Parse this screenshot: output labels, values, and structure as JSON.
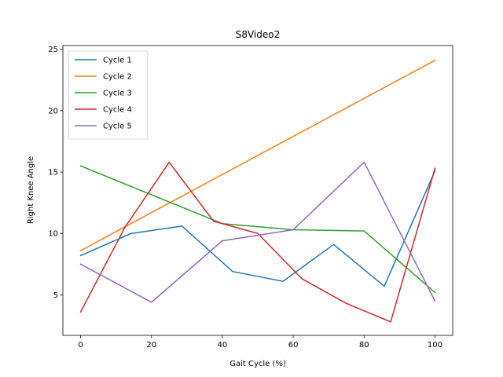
{
  "chart_data": {
    "type": "line",
    "title": "S8Video2",
    "xlabel": "Gait Cycle (%)",
    "ylabel": "Right Knee Angle",
    "xlim": [
      -5,
      105
    ],
    "ylim": [
      1.7,
      25.3
    ],
    "xticks": [
      0,
      20,
      40,
      60,
      80,
      100
    ],
    "yticks": [
      5,
      10,
      15,
      20,
      25
    ],
    "grid": false,
    "legend_position": "upper-left",
    "series": [
      {
        "name": "Cycle 1",
        "color": "#1f77b4",
        "x": [
          0,
          14.3,
          28.6,
          42.9,
          57.1,
          71.4,
          85.7,
          100
        ],
        "y": [
          8.2,
          10.0,
          10.6,
          6.9,
          6.1,
          9.1,
          5.7,
          15.1
        ]
      },
      {
        "name": "Cycle 2",
        "color": "#ff7f0e",
        "x": [
          0,
          100
        ],
        "y": [
          8.6,
          24.1
        ]
      },
      {
        "name": "Cycle 3",
        "color": "#2ca02c",
        "x": [
          0,
          40,
          60,
          80,
          100
        ],
        "y": [
          15.5,
          10.8,
          10.3,
          10.2,
          5.2
        ]
      },
      {
        "name": "Cycle 4",
        "color": "#d62728",
        "x": [
          0,
          12.5,
          25,
          37.5,
          50,
          62.5,
          75,
          87.5,
          100
        ],
        "y": [
          3.6,
          10.5,
          15.8,
          11.0,
          10.0,
          6.3,
          4.3,
          2.8,
          15.3
        ]
      },
      {
        "name": "Cycle 5",
        "color": "#9467bd",
        "x": [
          0,
          20,
          40,
          60,
          80,
          100
        ],
        "y": [
          7.5,
          4.4,
          9.4,
          10.3,
          15.8,
          4.5
        ]
      }
    ]
  }
}
